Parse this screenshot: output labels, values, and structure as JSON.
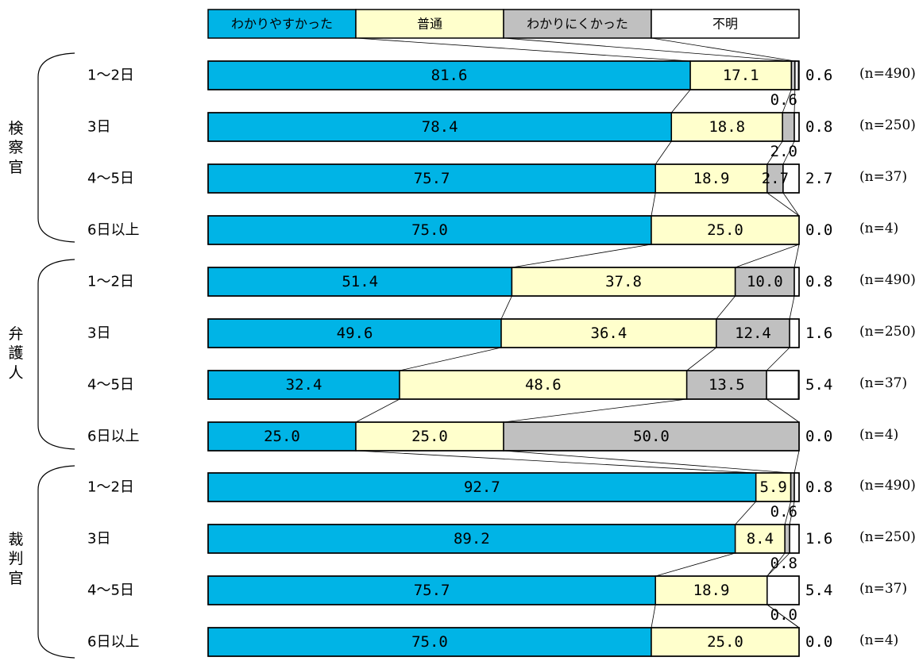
{
  "chart_data": {
    "type": "bar",
    "stacked": true,
    "orientation": "horizontal",
    "percent_scale": [
      0,
      100
    ],
    "legend_position": "top",
    "series": [
      {
        "name": "わかりやすかった",
        "color": "#00B4E6"
      },
      {
        "name": "普通",
        "color": "#FFFFCC"
      },
      {
        "name": "わかりにくかった",
        "color": "#C0C0C0"
      },
      {
        "name": "不明",
        "color": "#FFFFFF"
      }
    ],
    "groups": [
      {
        "name": "検察官",
        "bracket_glyphs": [
          "検",
          "察",
          "官"
        ],
        "rows": [
          {
            "label": "1～2日",
            "values": [
              81.6,
              17.1,
              0.6,
              0.6
            ],
            "labels": [
              "81.6",
              "17.1",
              "0.6",
              "0.6"
            ],
            "n": "(n=490)"
          },
          {
            "label": "3日",
            "values": [
              78.4,
              18.8,
              2.0,
              0.8
            ],
            "labels": [
              "78.4",
              "18.8",
              "2.0",
              "0.8"
            ],
            "n": "(n=250)"
          },
          {
            "label": "4～5日",
            "values": [
              75.7,
              18.9,
              2.7,
              2.7
            ],
            "labels": [
              "75.7",
              "18.9",
              "2.7",
              "2.7"
            ],
            "n": "(n=37)"
          },
          {
            "label": "6日以上",
            "values": [
              75.0,
              25.0,
              0.0,
              0.0
            ],
            "labels": [
              "75.0",
              "25.0",
              "",
              "0.0"
            ],
            "n": "(n=4)"
          }
        ]
      },
      {
        "name": "弁護人",
        "bracket_glyphs": [
          "弁",
          "護",
          "人"
        ],
        "rows": [
          {
            "label": "1～2日",
            "values": [
              51.4,
              37.8,
              10.0,
              0.8
            ],
            "labels": [
              "51.4",
              "37.8",
              "10.0",
              "0.8"
            ],
            "n": "(n=490)"
          },
          {
            "label": "3日",
            "values": [
              49.6,
              36.4,
              12.4,
              1.6
            ],
            "labels": [
              "49.6",
              "36.4",
              "12.4",
              "1.6"
            ],
            "n": "(n=250)"
          },
          {
            "label": "4～5日",
            "values": [
              32.4,
              48.6,
              13.5,
              5.4
            ],
            "labels": [
              "32.4",
              "48.6",
              "13.5",
              "5.4"
            ],
            "n": "(n=37)"
          },
          {
            "label": "6日以上",
            "values": [
              25.0,
              25.0,
              50.0,
              0.0
            ],
            "labels": [
              "25.0",
              "25.0",
              "50.0",
              "0.0"
            ],
            "n": "(n=4)"
          }
        ]
      },
      {
        "name": "裁判官",
        "bracket_glyphs": [
          "裁",
          "判",
          "官"
        ],
        "rows": [
          {
            "label": "1～2日",
            "values": [
              92.7,
              5.9,
              0.6,
              0.8
            ],
            "labels": [
              "92.7",
              "5.9",
              "0.6",
              "0.8"
            ],
            "n": "(n=490)"
          },
          {
            "label": "3日",
            "values": [
              89.2,
              8.4,
              0.8,
              1.6
            ],
            "labels": [
              "89.2",
              "8.4",
              "0.8",
              "1.6"
            ],
            "n": "(n=250)"
          },
          {
            "label": "4～5日",
            "values": [
              75.7,
              18.9,
              0.0,
              5.4
            ],
            "labels": [
              "75.7",
              "18.9",
              "0.0",
              "5.4"
            ],
            "n": "(n=37)"
          },
          {
            "label": "6日以上",
            "values": [
              75.0,
              25.0,
              0.0,
              0.0
            ],
            "labels": [
              "75.0",
              "25.0",
              "",
              "0.0"
            ],
            "n": "(n=4)"
          }
        ]
      }
    ]
  }
}
